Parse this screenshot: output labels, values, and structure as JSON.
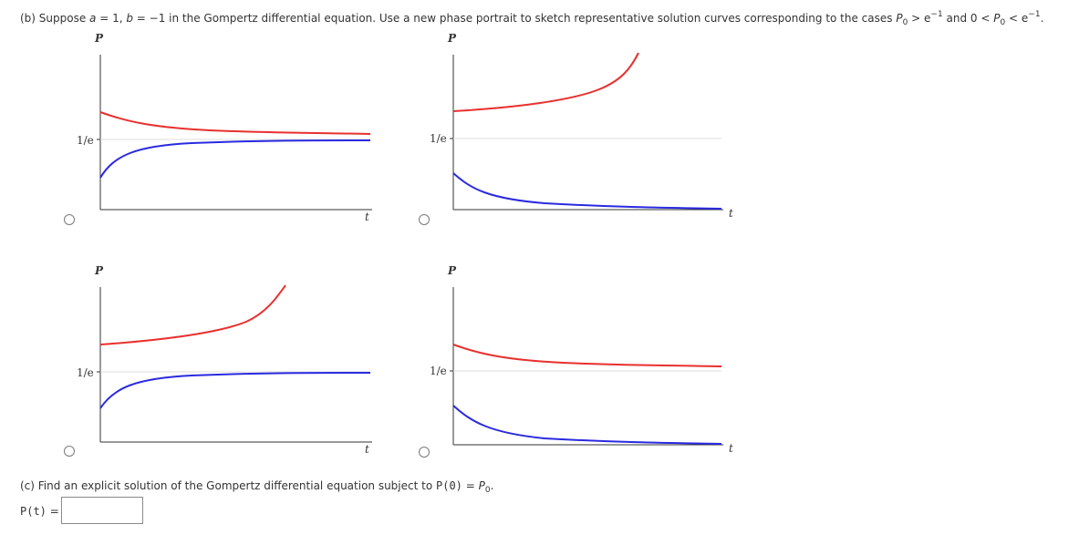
{
  "part_b": {
    "prefix": "(b) Suppose ",
    "a_var": "a",
    "a_eq": " = 1, ",
    "b_var": "b",
    "b_eq": " = −1",
    "middle": " in the Gompertz differential equation. Use a new phase portrait to sketch representative solution curves corresponding to the cases ",
    "p_var": "P",
    "sub0": "0",
    "gt": " > e",
    "exp": "−1",
    "and0": " and 0 < ",
    "lt": " < e",
    "end": "."
  },
  "graphs": {
    "y_axis_label": "P",
    "x_axis_label": "t",
    "equilibrium_label": "1/e"
  },
  "part_c": {
    "text": "(c) Find an explicit solution of the Gompertz differential equation subject to ",
    "func": "P(0)",
    "eq": " = ",
    "p_var": "P",
    "sub0": "0",
    "end": "."
  },
  "answer": {
    "label": "P(t)",
    "eq": " = ",
    "value": ""
  },
  "colors": {
    "upper_curve": "#e8302e",
    "lower_curve": "#2a2ae0",
    "axis": "#333333",
    "equilibrium_line": "#d8d8d8"
  },
  "chart_data": [
    {
      "type": "line",
      "option": 1,
      "upper_curve": "decreasing toward 1/e",
      "lower_curve": "increasing toward 1/e",
      "ylabel": "P",
      "xlabel": "t",
      "reference_line": "1/e"
    },
    {
      "type": "line",
      "option": 2,
      "upper_curve": "increasing, unbounded",
      "lower_curve": "decreasing toward 0",
      "ylabel": "P",
      "xlabel": "t",
      "reference_line": "1/e"
    },
    {
      "type": "line",
      "option": 3,
      "upper_curve": "increasing, unbounded",
      "lower_curve": "increasing toward 1/e",
      "ylabel": "P",
      "xlabel": "t",
      "reference_line": "1/e"
    },
    {
      "type": "line",
      "option": 4,
      "upper_curve": "decreasing toward 1/e",
      "lower_curve": "decreasing toward 0",
      "ylabel": "P",
      "xlabel": "t",
      "reference_line": "1/e"
    }
  ]
}
